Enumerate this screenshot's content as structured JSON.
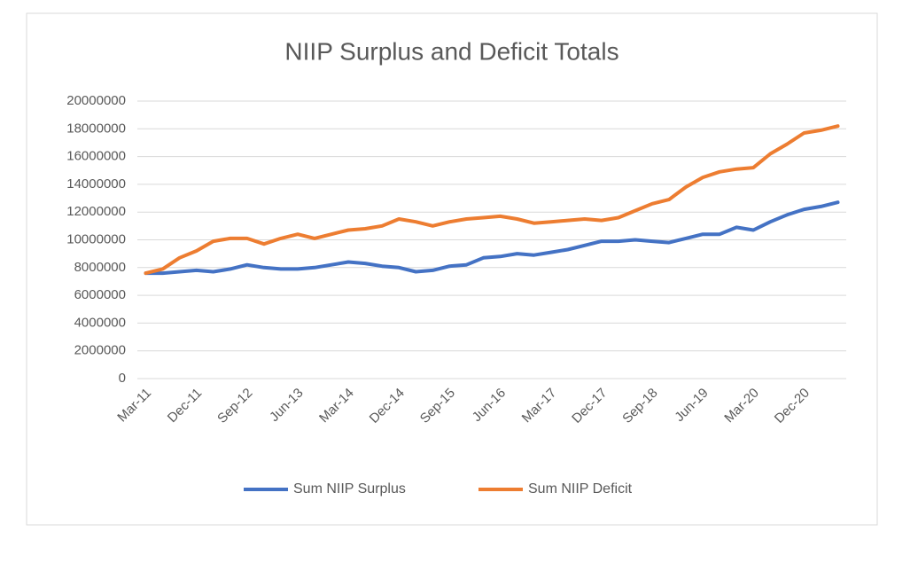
{
  "chart_data": {
    "type": "line",
    "title": "NIIP Surplus and Deficit Totals",
    "categories": [
      "Mar-11",
      null,
      null,
      "Dec-11",
      null,
      null,
      "Sep-12",
      null,
      null,
      "Jun-13",
      null,
      null,
      "Mar-14",
      null,
      null,
      "Dec-14",
      null,
      null,
      "Sep-15",
      null,
      null,
      "Jun-16",
      null,
      null,
      "Mar-17",
      null,
      null,
      "Dec-17",
      null,
      null,
      "Sep-18",
      null,
      null,
      "Jun-19",
      null,
      null,
      "Mar-20",
      null,
      null,
      "Dec-20",
      null,
      null
    ],
    "series": [
      {
        "name": "Sum NIIP Surplus",
        "color": "#4472c4",
        "values": [
          7600000,
          7600000,
          7700000,
          7800000,
          7700000,
          7900000,
          8200000,
          8000000,
          7900000,
          7900000,
          8000000,
          8200000,
          8400000,
          8300000,
          8100000,
          8000000,
          7700000,
          7800000,
          8100000,
          8200000,
          8700000,
          8800000,
          9000000,
          8900000,
          9100000,
          9300000,
          9600000,
          9900000,
          9900000,
          10000000,
          9900000,
          9800000,
          10100000,
          10400000,
          10400000,
          10900000,
          10700000,
          11300000,
          11800000,
          12200000,
          12400000,
          12700000
        ]
      },
      {
        "name": "Sum NIIP Deficit",
        "color": "#ed7d31",
        "values": [
          7600000,
          7900000,
          8700000,
          9200000,
          9900000,
          10100000,
          10100000,
          9700000,
          10100000,
          10400000,
          10100000,
          10400000,
          10700000,
          10800000,
          11000000,
          11500000,
          11300000,
          11000000,
          11300000,
          11500000,
          11600000,
          11700000,
          11500000,
          11200000,
          11300000,
          11400000,
          11500000,
          11400000,
          11600000,
          12100000,
          12600000,
          12900000,
          13800000,
          14500000,
          14900000,
          15100000,
          15200000,
          16200000,
          16900000,
          17700000,
          17900000,
          18200000
        ]
      }
    ],
    "ylim": [
      0,
      20000000
    ],
    "yticks": [
      0,
      2000000,
      4000000,
      6000000,
      8000000,
      10000000,
      12000000,
      14000000,
      16000000,
      18000000,
      20000000
    ],
    "grid": true,
    "legend": "bottom"
  }
}
